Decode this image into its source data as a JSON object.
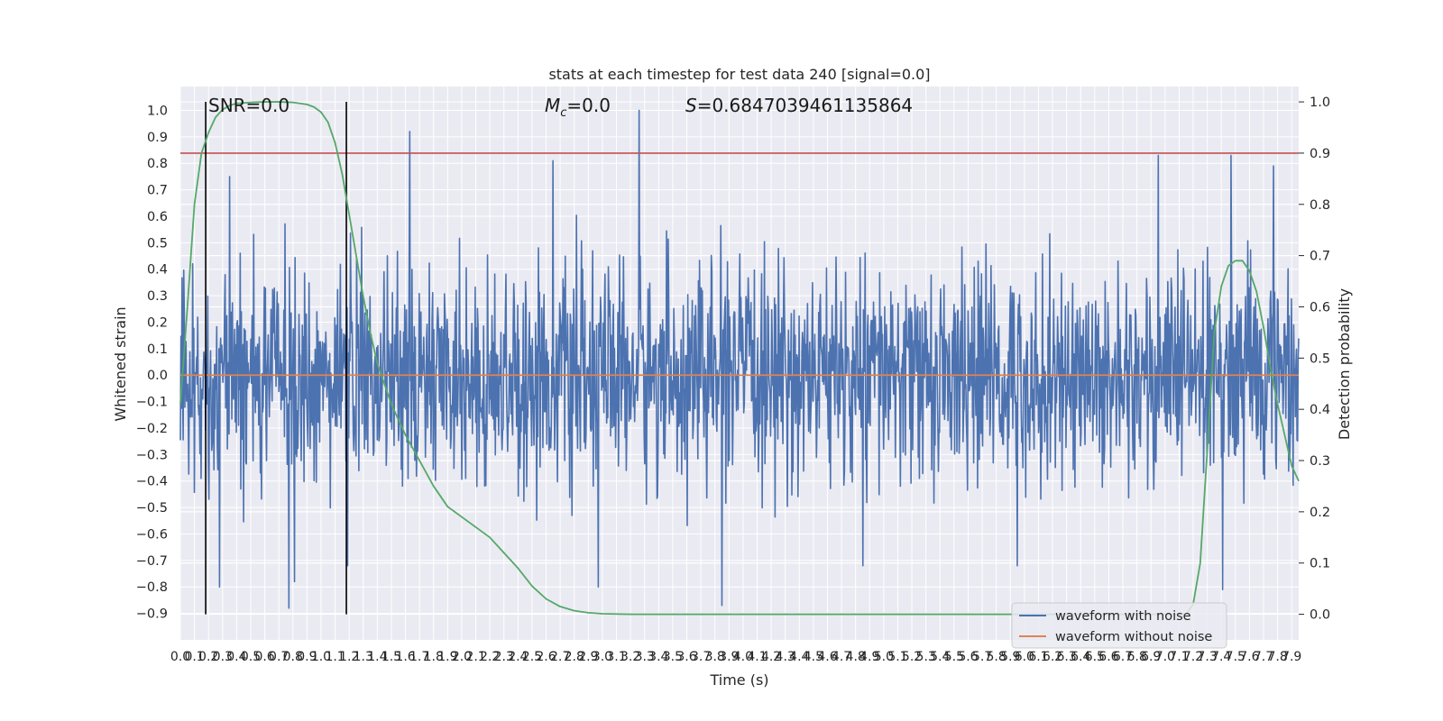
{
  "chart_data": {
    "type": "line",
    "title": "stats at each timestep for test data 240 [signal=0.0]",
    "xlabel": "Time (s)",
    "ylabel_left": "Whitened strain",
    "ylabel_right": "Detection probability",
    "xlim": [
      0.0,
      7.95
    ],
    "ylim_left": [
      -1.0,
      1.09
    ],
    "ylim_right": [
      -0.05,
      1.03
    ],
    "xticks": [
      "0.0",
      "0.1",
      "0.2",
      "0.3",
      "0.4",
      "0.5",
      "0.6",
      "0.7",
      "0.8",
      "0.9",
      "1.0",
      "1.1",
      "1.2",
      "1.3",
      "1.4",
      "1.5",
      "1.6",
      "1.7",
      "1.8",
      "1.9",
      "2.0",
      "2.1",
      "2.2",
      "2.3",
      "2.4",
      "2.5",
      "2.6",
      "2.7",
      "2.8",
      "2.9",
      "3.0",
      "3.1",
      "3.2",
      "3.3",
      "3.4",
      "3.5",
      "3.6",
      "3.7",
      "3.8",
      "3.9",
      "4.0",
      "4.1",
      "4.2",
      "4.3",
      "4.4",
      "4.5",
      "4.6",
      "4.7",
      "4.8",
      "4.9",
      "5.0",
      "5.1",
      "5.2",
      "5.3",
      "5.4",
      "5.5",
      "5.6",
      "5.7",
      "5.8",
      "5.9",
      "6.0",
      "6.1",
      "6.2",
      "6.3",
      "6.4",
      "6.5",
      "6.6",
      "6.7",
      "6.8",
      "6.9",
      "7.0",
      "7.1",
      "7.2",
      "7.3",
      "7.4",
      "7.5",
      "7.6",
      "7.7",
      "7.8",
      "7.9"
    ],
    "yticks_left": [
      "−0.9",
      "−0.8",
      "−0.7",
      "−0.6",
      "−0.5",
      "−0.4",
      "−0.3",
      "−0.2",
      "−0.1",
      "0.0",
      "0.1",
      "0.2",
      "0.3",
      "0.4",
      "0.5",
      "0.6",
      "0.7",
      "0.8",
      "0.9",
      "1.0"
    ],
    "yticks_right": [
      "0.0",
      "0.1",
      "0.2",
      "0.3",
      "0.4",
      "0.5",
      "0.6",
      "0.7",
      "0.8",
      "0.9",
      "1.0"
    ],
    "grid": true,
    "legend_placement": "bottom-right",
    "series": [
      {
        "name": "waveform with noise",
        "axis": "left",
        "color": "#4c72b0",
        "noise_envelope": {
          "n_points": 2000,
          "typical_abs_max": 0.45,
          "peaks": [
            [
              1.63,
              0.92
            ],
            [
              3.26,
              1.0
            ],
            [
              2.65,
              0.81
            ],
            [
              6.95,
              0.83
            ],
            [
              7.47,
              0.83
            ],
            [
              7.77,
              0.79
            ],
            [
              0.35,
              0.75
            ],
            [
              0.77,
              -0.88
            ],
            [
              0.81,
              -0.78
            ],
            [
              0.28,
              -0.8
            ],
            [
              3.85,
              -0.87
            ],
            [
              2.97,
              -0.8
            ],
            [
              7.41,
              -0.81
            ],
            [
              4.85,
              -0.72
            ],
            [
              5.95,
              -0.72
            ],
            [
              1.19,
              -0.72
            ]
          ]
        }
      },
      {
        "name": "waveform without noise",
        "axis": "left",
        "color": "#dd8452",
        "x": [
          0.0,
          7.95
        ],
        "y": [
          0.0,
          0.0
        ]
      },
      {
        "axis": "right",
        "color": "#55a868",
        "x": [
          0.0,
          0.05,
          0.1,
          0.15,
          0.2,
          0.25,
          0.3,
          0.35,
          0.4,
          0.5,
          0.6,
          0.7,
          0.8,
          0.9,
          0.95,
          1.0,
          1.05,
          1.1,
          1.15,
          1.2,
          1.25,
          1.3,
          1.35,
          1.4,
          1.5,
          1.6,
          1.7,
          1.8,
          1.9,
          2.0,
          2.1,
          2.2,
          2.3,
          2.4,
          2.5,
          2.6,
          2.7,
          2.8,
          2.9,
          3.0,
          3.2,
          3.5,
          4.0,
          5.0,
          6.0,
          7.0,
          7.15,
          7.2,
          7.25,
          7.3,
          7.35,
          7.4,
          7.45,
          7.5,
          7.55,
          7.6,
          7.65,
          7.7,
          7.75,
          7.8,
          7.85,
          7.9,
          7.95
        ],
        "y": [
          0.41,
          0.6,
          0.8,
          0.9,
          0.94,
          0.97,
          0.985,
          0.993,
          0.997,
          0.999,
          1.0,
          1.0,
          0.999,
          0.995,
          0.99,
          0.98,
          0.96,
          0.92,
          0.86,
          0.78,
          0.7,
          0.62,
          0.55,
          0.49,
          0.41,
          0.35,
          0.3,
          0.25,
          0.21,
          0.19,
          0.17,
          0.15,
          0.12,
          0.09,
          0.055,
          0.03,
          0.015,
          0.007,
          0.003,
          0.001,
          0.0,
          0.0,
          0.0,
          0.0,
          0.0,
          0.0,
          0.0,
          0.02,
          0.1,
          0.32,
          0.55,
          0.64,
          0.68,
          0.69,
          0.69,
          0.67,
          0.63,
          0.56,
          0.48,
          0.41,
          0.35,
          0.29,
          0.26
        ]
      },
      {
        "axis": "right",
        "color": "#c44e52",
        "x": [
          0.0,
          7.95
        ],
        "y": [
          0.9,
          0.9
        ]
      },
      {
        "axis": "right",
        "color": "#000000",
        "type": "vlines",
        "x": [
          0.18,
          1.18
        ],
        "y": [
          0.0,
          1.0
        ]
      }
    ],
    "annotations": {
      "snr": "SNR=0.0",
      "mc_symbol": "M",
      "mc_sub": "c",
      "mc_value": "=0.0",
      "s_symbol": "S",
      "s_value": "=0.6847039461135864"
    },
    "legend": [
      "waveform with noise",
      "waveform without noise"
    ],
    "colors": {
      "axes_bg": "#eaeaf2",
      "grid": "#ffffff",
      "noise": "#4c72b0",
      "clean": "#dd8452",
      "prob": "#55a868",
      "threshold": "#c44e52"
    }
  }
}
